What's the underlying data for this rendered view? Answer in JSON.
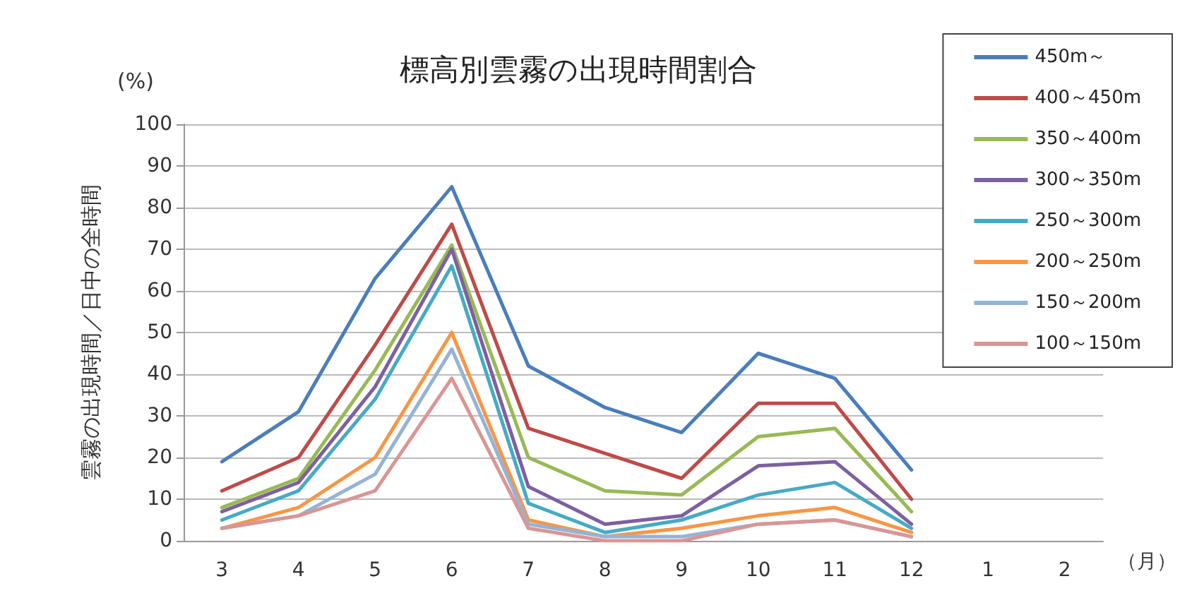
{
  "chart_data": {
    "type": "line",
    "title": "標高別雲霧の出現時間割合",
    "ylabel": "雲霧の出現時間／日中の全時間",
    "xlabel": "（月）",
    "annotations": [
      "(%)"
    ],
    "categories": [
      "3",
      "4",
      "5",
      "6",
      "7",
      "8",
      "9",
      "10",
      "11",
      "12",
      "1",
      "2"
    ],
    "ylim": [
      0,
      100
    ],
    "yticks": [
      0,
      10,
      20,
      30,
      40,
      50,
      60,
      70,
      80,
      90,
      100
    ],
    "grid": "y",
    "legend": "top right",
    "marker": "none",
    "line_style": "solid",
    "series": [
      {
        "name": "450m～",
        "color": "#4a7ebb",
        "values": [
          19,
          31,
          63,
          85,
          42,
          32,
          26,
          45,
          39,
          17,
          null,
          null
        ]
      },
      {
        "name": "400～450m",
        "color": "#be4b48",
        "values": [
          12,
          20,
          47,
          76,
          27,
          21,
          15,
          33,
          33,
          10,
          null,
          null
        ]
      },
      {
        "name": "350～400m",
        "color": "#98b954",
        "values": [
          8,
          15,
          41,
          71,
          20,
          12,
          11,
          25,
          27,
          7,
          null,
          null
        ]
      },
      {
        "name": "300～350m",
        "color": "#7d60a0",
        "values": [
          7,
          14,
          37,
          70,
          13,
          4,
          6,
          18,
          19,
          4,
          null,
          null
        ]
      },
      {
        "name": "250～300m",
        "color": "#46aac5",
        "values": [
          5,
          12,
          34,
          66,
          9,
          2,
          5,
          11,
          14,
          3,
          null,
          null
        ]
      },
      {
        "name": "200～250m",
        "color": "#f79646",
        "values": [
          3,
          8,
          20,
          50,
          5,
          1,
          3,
          6,
          8,
          2,
          null,
          null
        ]
      },
      {
        "name": "150～200m",
        "color": "#95b3d7",
        "values": [
          3,
          6,
          16,
          46,
          4,
          1,
          1,
          4,
          5,
          1,
          null,
          null
        ]
      },
      {
        "name": "100～150m",
        "color": "#d99694",
        "values": [
          3,
          6,
          12,
          39,
          3,
          0,
          0,
          4,
          5,
          1,
          null,
          null
        ]
      }
    ]
  }
}
